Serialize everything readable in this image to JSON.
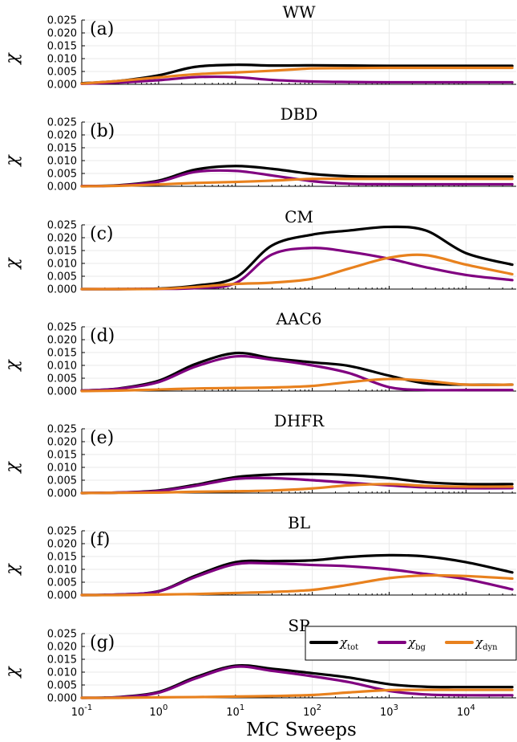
{
  "chart_data": {
    "type": "line",
    "xscale": "log",
    "xlim": [
      0.1,
      45000
    ],
    "x_ticks": [
      0.1,
      1,
      10,
      100,
      1000,
      10000
    ],
    "x_tick_labels": [
      {
        "base": "10",
        "exp": "-1"
      },
      {
        "base": "10",
        "exp": "0"
      },
      {
        "base": "10",
        "exp": "1"
      },
      {
        "base": "10",
        "exp": "2"
      },
      {
        "base": "10",
        "exp": "3"
      },
      {
        "base": "10",
        "exp": "4"
      }
    ],
    "xlabel": "MC Sweeps",
    "ylabel": "χ",
    "ylim": [
      0,
      0.025
    ],
    "y_ticks": [
      "0.000",
      "0.005",
      "0.010",
      "0.015",
      "0.020",
      "0.025"
    ],
    "grid": true,
    "legend": {
      "placement": "panel-g-top-right",
      "entries": [
        {
          "symbol": "χ",
          "sub": "tot",
          "color": "#000000"
        },
        {
          "symbol": "χ",
          "sub": "bg",
          "color": "#800080"
        },
        {
          "symbol": "χ",
          "sub": "dyn",
          "color": "#e8811e"
        }
      ]
    },
    "x": [
      0.1,
      0.3,
      1,
      3,
      10,
      30,
      100,
      300,
      1000,
      3000,
      10000,
      40000
    ],
    "panels": [
      {
        "label": "(a)",
        "title": "WW",
        "series": [
          {
            "values": [
              0.0004,
              0.0013,
              0.0035,
              0.0068,
              0.0076,
              0.0073,
              0.0074,
              0.0073,
              0.0072,
              0.0072,
              0.0072,
              0.0072
            ]
          },
          {
            "values": [
              0.0002,
              0.0007,
              0.0016,
              0.0028,
              0.0028,
              0.0017,
              0.0011,
              0.0009,
              0.0008,
              0.0008,
              0.0008,
              0.0008
            ]
          },
          {
            "values": [
              0.0003,
              0.0013,
              0.0027,
              0.0039,
              0.0046,
              0.0053,
              0.0062,
              0.0063,
              0.0064,
              0.0064,
              0.0064,
              0.0064
            ]
          }
        ]
      },
      {
        "label": "(b)",
        "title": "DBD",
        "series": [
          {
            "values": [
              0.0001,
              0.0004,
              0.0022,
              0.0065,
              0.0079,
              0.0068,
              0.0048,
              0.0039,
              0.0038,
              0.0038,
              0.0038,
              0.0038
            ]
          },
          {
            "values": [
              0.0001,
              0.0003,
              0.0018,
              0.0056,
              0.006,
              0.0042,
              0.002,
              0.001,
              0.0008,
              0.0008,
              0.0008,
              0.0008
            ]
          },
          {
            "values": [
              0.0,
              0.0002,
              0.0007,
              0.0013,
              0.0017,
              0.0022,
              0.0029,
              0.0029,
              0.0029,
              0.0029,
              0.0029,
              0.0029
            ]
          }
        ]
      },
      {
        "label": "(c)",
        "title": "CM",
        "series": [
          {
            "values": [
              0.0,
              0.0,
              0.0002,
              0.0013,
              0.0045,
              0.017,
              0.0212,
              0.0228,
              0.0242,
              0.0228,
              0.014,
              0.0095
            ]
          },
          {
            "values": [
              0.0,
              0.0,
              0.0001,
              0.0004,
              0.0023,
              0.0135,
              0.016,
              0.0145,
              0.0118,
              0.0085,
              0.0055,
              0.0035
            ]
          },
          {
            "values": [
              0.0,
              0.0,
              0.0001,
              0.0008,
              0.002,
              0.0025,
              0.004,
              0.008,
              0.0122,
              0.0132,
              0.0095,
              0.0058
            ]
          }
        ]
      },
      {
        "label": "(d)",
        "title": "AAC6",
        "series": [
          {
            "values": [
              0.0002,
              0.001,
              0.004,
              0.0105,
              0.0148,
              0.0128,
              0.0112,
              0.0098,
              0.006,
              0.003,
              0.0025,
              0.0025
            ]
          },
          {
            "values": [
              0.0002,
              0.0009,
              0.0035,
              0.0095,
              0.0135,
              0.0122,
              0.01,
              0.007,
              0.0015,
              0.0004,
              0.0004,
              0.0004
            ]
          },
          {
            "values": [
              0.0,
              0.0002,
              0.0006,
              0.001,
              0.0012,
              0.0014,
              0.002,
              0.0035,
              0.0047,
              0.004,
              0.0025,
              0.0025
            ]
          }
        ]
      },
      {
        "label": "(e)",
        "title": "DHFR",
        "series": [
          {
            "values": [
              0.0,
              0.0002,
              0.001,
              0.0032,
              0.0062,
              0.0072,
              0.0074,
              0.007,
              0.0058,
              0.0042,
              0.0035,
              0.0035
            ]
          },
          {
            "values": [
              0.0,
              0.0002,
              0.0008,
              0.0028,
              0.0055,
              0.0058,
              0.005,
              0.004,
              0.003,
              0.0022,
              0.0019,
              0.0019
            ]
          },
          {
            "values": [
              0.0,
              0.0001,
              0.0002,
              0.0005,
              0.0007,
              0.001,
              0.0018,
              0.003,
              0.0035,
              0.0028,
              0.0025,
              0.0025
            ]
          }
        ]
      },
      {
        "label": "(f)",
        "title": "BL",
        "series": [
          {
            "values": [
              0.0,
              0.0002,
              0.0015,
              0.0075,
              0.0128,
              0.0132,
              0.0135,
              0.0148,
              0.0155,
              0.015,
              0.0128,
              0.0088
            ]
          },
          {
            "values": [
              0.0,
              0.0002,
              0.0014,
              0.007,
              0.012,
              0.0123,
              0.0117,
              0.0112,
              0.01,
              0.0082,
              0.0062,
              0.0022
            ]
          },
          {
            "values": [
              0.0,
              0.0,
              0.0002,
              0.0004,
              0.0008,
              0.0012,
              0.002,
              0.004,
              0.0066,
              0.0076,
              0.0074,
              0.0064
            ]
          }
        ]
      },
      {
        "label": "(g)",
        "title": "SP",
        "series": [
          {
            "values": [
              0.0,
              0.0003,
              0.0023,
              0.008,
              0.0125,
              0.0113,
              0.0096,
              0.0079,
              0.0053,
              0.0043,
              0.0042,
              0.0042
            ]
          },
          {
            "values": [
              0.0,
              0.0002,
              0.002,
              0.0075,
              0.0121,
              0.0105,
              0.0084,
              0.0061,
              0.0027,
              0.0013,
              0.001,
              0.001
            ]
          },
          {
            "values": [
              0.0,
              0.0,
              0.0002,
              0.0003,
              0.0005,
              0.0007,
              0.0011,
              0.0021,
              0.003,
              0.0031,
              0.0031,
              0.0031
            ]
          }
        ]
      }
    ]
  }
}
